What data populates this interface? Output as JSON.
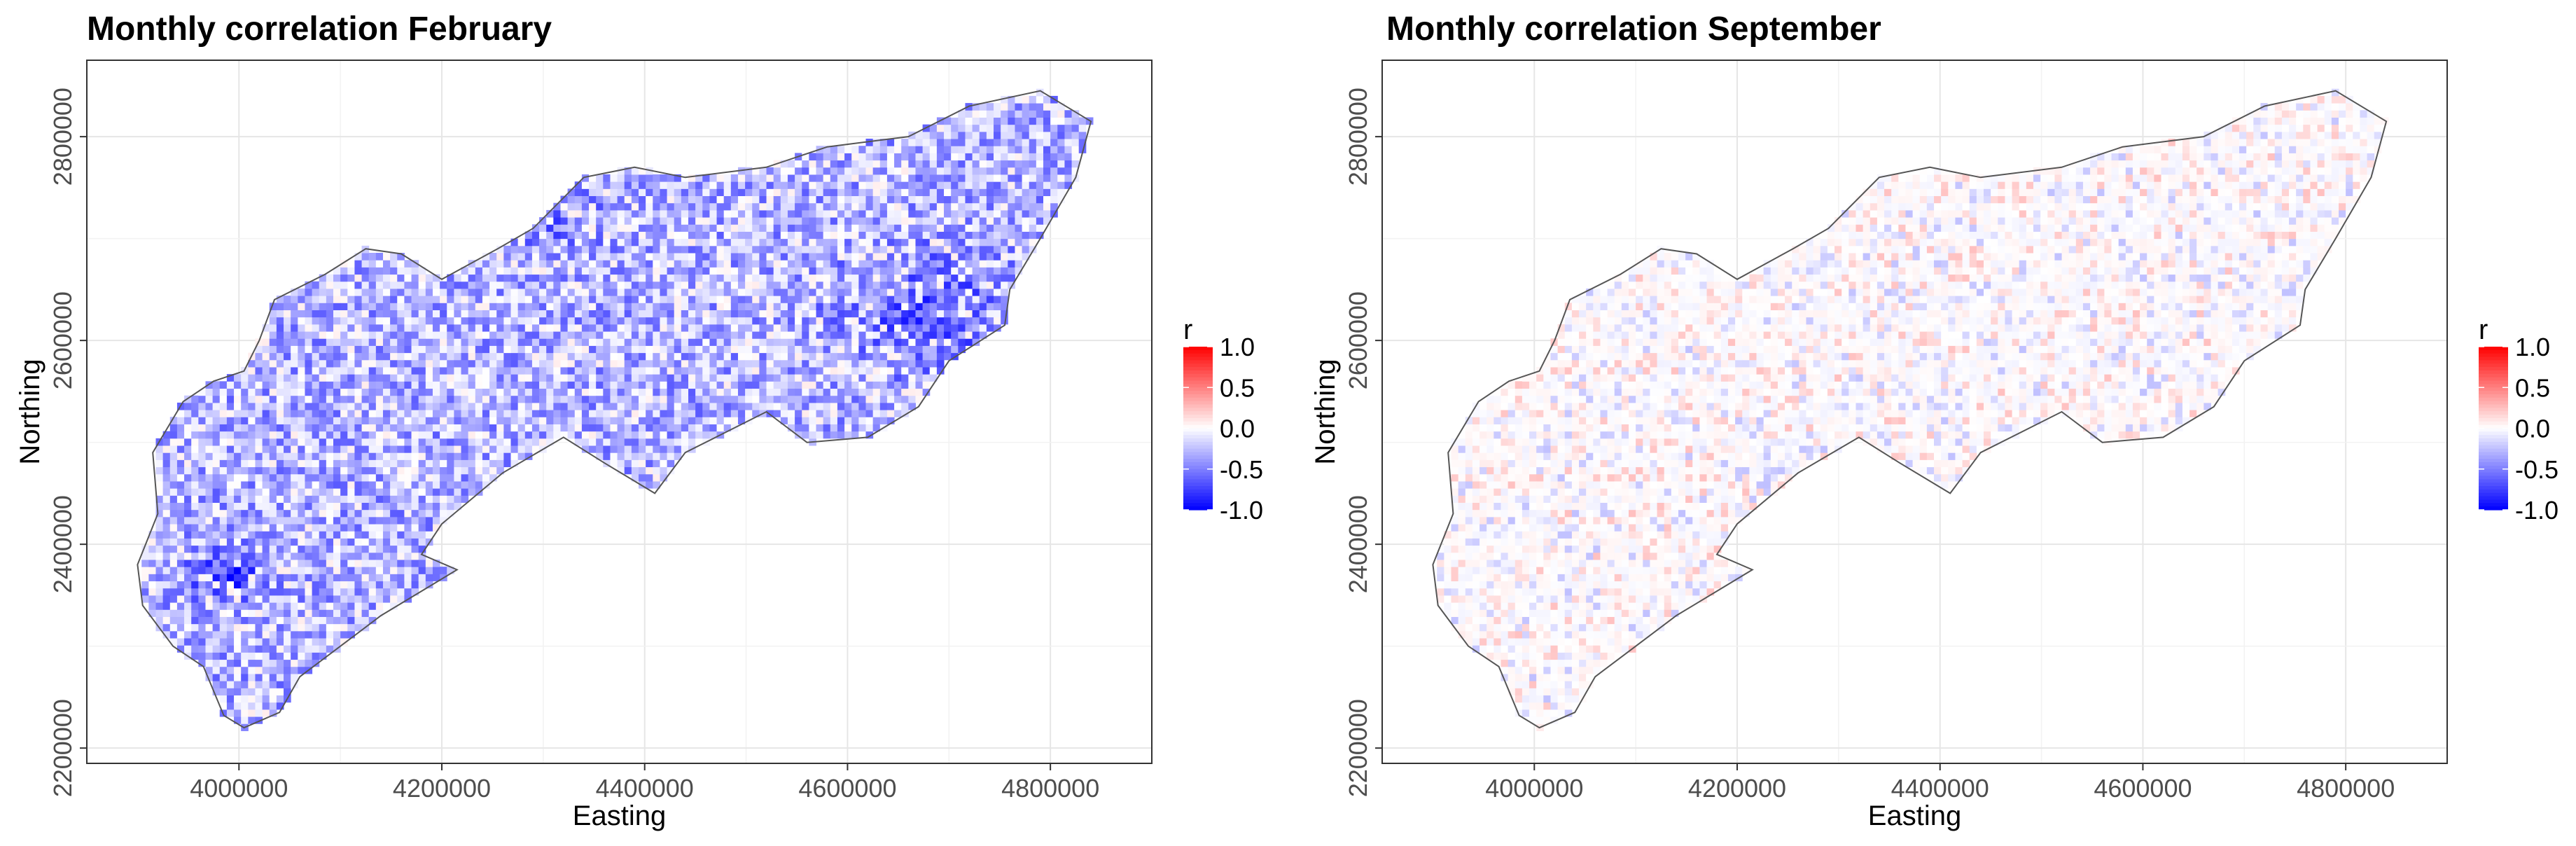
{
  "chart_data": [
    {
      "type": "heatmap",
      "title": "Monthly correlation February",
      "xlabel": "Easting",
      "ylabel": "Northing",
      "xlim": [
        3850000,
        4900000
      ],
      "ylim": [
        2185000,
        2875000
      ],
      "x_ticks": [
        4000000,
        4200000,
        4400000,
        4600000,
        4800000
      ],
      "x_tick_labels": [
        "4000000",
        "4200000",
        "4400000",
        "4600000",
        "4800000"
      ],
      "y_ticks": [
        2200000,
        2400000,
        2600000,
        2800000
      ],
      "y_tick_labels": [
        "2200000",
        "2400000",
        "2600000",
        "2800000"
      ],
      "grid": true,
      "legend": {
        "title": "r",
        "position": "right",
        "range": [
          -1.0,
          1.0
        ],
        "ticks": [
          1.0,
          0.5,
          0.0,
          -0.5,
          -1.0
        ],
        "labels": [
          "1.0",
          "0.5",
          "0.0",
          "-0.5",
          "-1.0"
        ],
        "colors": {
          "low": "#0000ff",
          "mid": "#ffffff",
          "high": "#ff0000"
        }
      },
      "field": {
        "dominant_sign": "negative",
        "mean_r": -0.35,
        "strong_negative_areas": [
          "north-east",
          "south-west"
        ]
      }
    },
    {
      "type": "heatmap",
      "title": "Monthly correlation September",
      "xlabel": "Easting",
      "ylabel": "Northing",
      "xlim": [
        3850000,
        4900000
      ],
      "ylim": [
        2185000,
        2875000
      ],
      "x_ticks": [
        4000000,
        4200000,
        4400000,
        4600000,
        4800000
      ],
      "x_tick_labels": [
        "4000000",
        "4200000",
        "4400000",
        "4600000",
        "4800000"
      ],
      "y_ticks": [
        2200000,
        2400000,
        2600000,
        2800000
      ],
      "y_tick_labels": [
        "2200000",
        "2400000",
        "2600000",
        "2800000"
      ],
      "grid": true,
      "legend": {
        "title": "r",
        "position": "right",
        "range": [
          -1.0,
          1.0
        ],
        "ticks": [
          1.0,
          0.5,
          0.0,
          -0.5,
          -1.0
        ],
        "labels": [
          "1.0",
          "0.5",
          "0.0",
          "-0.5",
          "-1.0"
        ],
        "colors": {
          "low": "#0000ff",
          "mid": "#ffffff",
          "high": "#ff0000"
        }
      },
      "field": {
        "dominant_sign": "neutral",
        "mean_r": 0.0,
        "strong_negative_areas": []
      }
    }
  ]
}
